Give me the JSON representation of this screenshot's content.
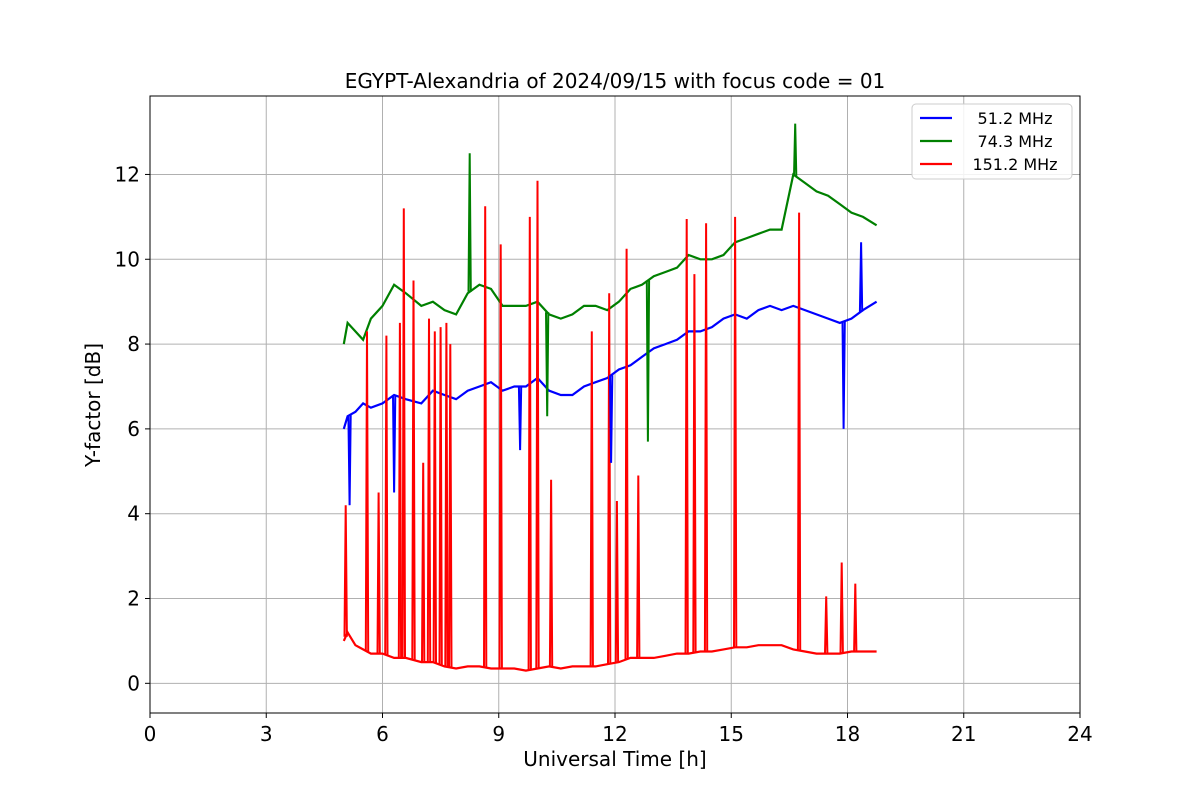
{
  "chart_data": {
    "type": "line",
    "title": "EGYPT-Alexandria of 2024/09/15 with focus code = 01",
    "xlabel": "Universal Time [h]",
    "ylabel": "Y-factor [dB]",
    "xlim": [
      0,
      24
    ],
    "ylim": [
      -0.7,
      13.85
    ],
    "xticks": [
      "0",
      "3",
      "6",
      "9",
      "12",
      "15",
      "18",
      "21",
      "24"
    ],
    "yticks": [
      "0",
      "2",
      "4",
      "6",
      "8",
      "10",
      "12"
    ],
    "grid": true,
    "legend_position": "top-right",
    "series": [
      {
        "name": "51.2 MHz",
        "color": "#0000ff",
        "x": [
          5.0,
          5.1,
          5.3,
          5.5,
          5.7,
          6.0,
          6.3,
          6.6,
          7.0,
          7.3,
          7.6,
          7.9,
          8.2,
          8.5,
          8.8,
          9.1,
          9.4,
          9.7,
          10.0,
          10.3,
          10.6,
          10.9,
          11.2,
          11.5,
          11.8,
          12.1,
          12.4,
          12.7,
          13.0,
          13.3,
          13.6,
          13.9,
          14.2,
          14.5,
          14.8,
          15.1,
          15.4,
          15.7,
          16.0,
          16.3,
          16.6,
          16.9,
          17.2,
          17.5,
          17.8,
          18.1,
          18.4,
          18.75
        ],
        "y": [
          6.0,
          6.3,
          6.4,
          6.6,
          6.5,
          6.6,
          6.8,
          6.7,
          6.6,
          6.9,
          6.8,
          6.7,
          6.9,
          7.0,
          7.1,
          6.9,
          7.0,
          7.0,
          7.2,
          6.9,
          6.8,
          6.8,
          7.0,
          7.1,
          7.2,
          7.4,
          7.5,
          7.7,
          7.9,
          8.0,
          8.1,
          8.3,
          8.3,
          8.4,
          8.6,
          8.7,
          8.6,
          8.8,
          8.9,
          8.8,
          8.9,
          8.8,
          8.7,
          8.6,
          8.5,
          8.6,
          8.8,
          9.0
        ]
      },
      {
        "name": "74.3 MHz",
        "color": "#008000",
        "x": [
          5.0,
          5.1,
          5.3,
          5.5,
          5.7,
          6.0,
          6.3,
          6.6,
          7.0,
          7.3,
          7.6,
          7.9,
          8.2,
          8.5,
          8.8,
          9.1,
          9.4,
          9.7,
          10.0,
          10.3,
          10.6,
          10.9,
          11.2,
          11.5,
          11.8,
          12.1,
          12.4,
          12.7,
          13.0,
          13.3,
          13.6,
          13.9,
          14.2,
          14.5,
          14.8,
          15.1,
          15.4,
          15.7,
          16.0,
          16.3,
          16.6,
          16.9,
          17.2,
          17.5,
          17.8,
          18.1,
          18.4,
          18.75
        ],
        "y": [
          8.0,
          8.5,
          8.3,
          8.1,
          8.6,
          8.9,
          9.4,
          9.2,
          8.9,
          9.0,
          8.8,
          8.7,
          9.2,
          9.4,
          9.3,
          8.9,
          8.9,
          8.9,
          9.0,
          8.7,
          8.6,
          8.7,
          8.9,
          8.9,
          8.8,
          9.0,
          9.3,
          9.4,
          9.6,
          9.7,
          9.8,
          10.1,
          10.0,
          10.0,
          10.1,
          10.4,
          10.5,
          10.6,
          10.7,
          10.7,
          12.0,
          11.8,
          11.6,
          11.5,
          11.3,
          11.1,
          11.0,
          10.8
        ]
      },
      {
        "name": "151.2 MHz",
        "color": "#ff0000",
        "x": [
          5.0,
          5.1,
          5.3,
          5.5,
          5.7,
          6.0,
          6.3,
          6.6,
          7.0,
          7.3,
          7.6,
          7.9,
          8.2,
          8.5,
          8.8,
          9.1,
          9.4,
          9.7,
          10.0,
          10.3,
          10.6,
          10.9,
          11.2,
          11.5,
          11.8,
          12.1,
          12.4,
          12.7,
          13.0,
          13.3,
          13.6,
          13.9,
          14.2,
          14.5,
          14.8,
          15.1,
          15.4,
          15.7,
          16.0,
          16.3,
          16.6,
          16.9,
          17.2,
          17.5,
          17.8,
          18.1,
          18.4,
          18.75
        ],
        "y": [
          1.0,
          1.2,
          0.9,
          0.8,
          0.7,
          0.7,
          0.6,
          0.6,
          0.5,
          0.5,
          0.4,
          0.35,
          0.4,
          0.4,
          0.35,
          0.35,
          0.35,
          0.3,
          0.35,
          0.4,
          0.35,
          0.4,
          0.4,
          0.4,
          0.45,
          0.5,
          0.6,
          0.6,
          0.6,
          0.65,
          0.7,
          0.7,
          0.75,
          0.75,
          0.8,
          0.85,
          0.85,
          0.9,
          0.9,
          0.9,
          0.8,
          0.75,
          0.7,
          0.7,
          0.7,
          0.75,
          0.75,
          0.75
        ]
      }
    ],
    "spikes": [
      {
        "series": "151.2 MHz",
        "x": [
          5.05,
          5.6,
          5.9,
          6.1,
          6.45,
          6.55,
          6.8,
          7.05,
          7.2,
          7.35,
          7.5,
          7.65,
          7.75,
          8.65,
          9.05,
          9.8,
          10.0,
          10.35,
          11.4,
          11.85,
          12.05,
          12.3,
          12.6,
          13.85,
          14.05,
          14.35,
          15.1,
          16.75,
          17.45,
          17.85,
          18.2
        ],
        "y": [
          4.2,
          8.3,
          4.5,
          8.2,
          8.5,
          11.2,
          9.5,
          5.2,
          8.6,
          8.3,
          8.4,
          8.5,
          8.0,
          11.25,
          10.35,
          11.0,
          11.85,
          4.8,
          8.3,
          9.2,
          4.3,
          10.25,
          4.9,
          10.95,
          9.65,
          10.85,
          11.0,
          11.1,
          2.05,
          2.85,
          2.35
        ]
      },
      {
        "series": "74.3 MHz",
        "x": [
          8.25,
          10.25,
          12.85,
          16.65
        ],
        "y": [
          12.5,
          6.3,
          5.7,
          13.2
        ]
      },
      {
        "series": "51.2 MHz",
        "x": [
          5.15,
          6.3,
          9.55,
          11.9,
          17.9,
          18.35
        ],
        "y": [
          4.2,
          4.5,
          5.5,
          5.2,
          6.0,
          10.4
        ]
      }
    ]
  }
}
